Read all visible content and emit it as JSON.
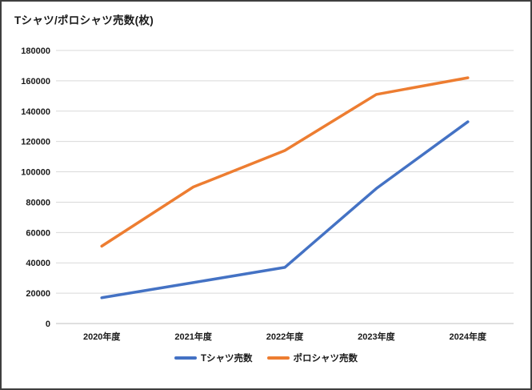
{
  "chart_data": {
    "type": "line",
    "title": "Tシャツ/ポロシャツ売数(枚)",
    "categories": [
      "2020年度",
      "2021年度",
      "2022年度",
      "2023年度",
      "2024年度"
    ],
    "series": [
      {
        "name": "Tシャツ売数",
        "color": "#4472C4",
        "values": [
          17000,
          27000,
          37000,
          89000,
          133000
        ]
      },
      {
        "name": "ポロシャツ売数",
        "color": "#ED7D31",
        "values": [
          51000,
          90000,
          114000,
          151000,
          162000
        ]
      }
    ],
    "xlabel": "",
    "ylabel": "",
    "ylim": [
      0,
      180000
    ],
    "ytick_step": 20000,
    "yticks": [
      0,
      20000,
      40000,
      60000,
      80000,
      100000,
      120000,
      140000,
      160000,
      180000
    ],
    "grid": "horizontal",
    "legend_position": "bottom",
    "colors": {
      "gridline": "#D9D9D9",
      "axis_line": "#BFBFBF",
      "text": "#1a1a1a",
      "background": "#FFFFFF",
      "frame_border": "#3F3F3F"
    }
  }
}
